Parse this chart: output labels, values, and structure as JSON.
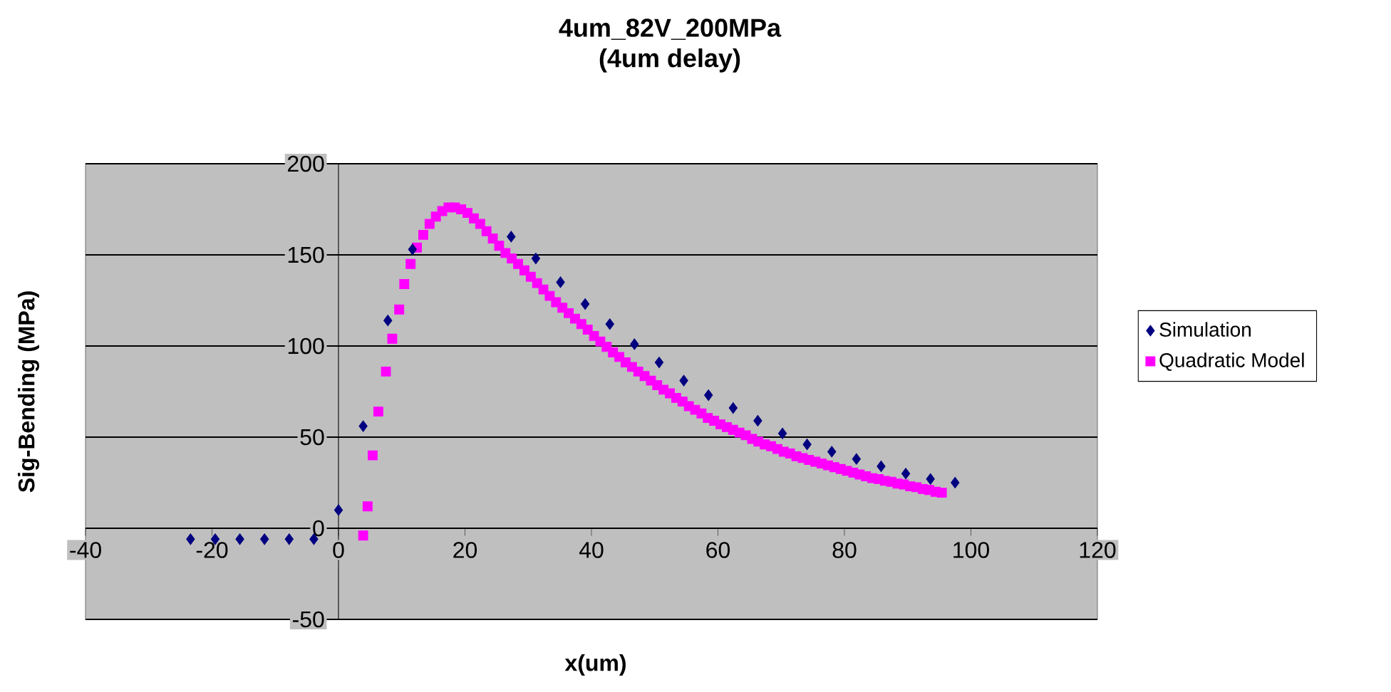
{
  "chart_data": {
    "type": "scatter",
    "title": "4um_82V_200MPa",
    "subtitle": "(4um delay)",
    "xlabel": "x(um)",
    "ylabel": "Sig-Bending (MPa)",
    "xlim": [
      -40,
      120
    ],
    "xticks": [
      -40,
      -20,
      0,
      20,
      40,
      60,
      80,
      100,
      120
    ],
    "ylim": [
      -50,
      200
    ],
    "yticks": [
      -50,
      0,
      50,
      100,
      150,
      200
    ],
    "grid": "y",
    "legend": "right",
    "series": [
      {
        "name": "Simulation",
        "color": "#000080",
        "marker": "diamond",
        "x": [
          -23.4,
          -19.5,
          -15.6,
          -11.7,
          -7.8,
          -3.9,
          0,
          3.9,
          7.8,
          11.7,
          15.6,
          19.5,
          23.4,
          27.3,
          31.2,
          35.1,
          39,
          42.9,
          46.8,
          50.7,
          54.6,
          58.5,
          62.4,
          66.3,
          70.2,
          74.1,
          78,
          81.9,
          85.8,
          89.7,
          93.6,
          97.5
        ],
        "values": [
          -6,
          -6,
          -6,
          -6,
          -6,
          -6,
          10,
          56,
          114,
          153,
          null,
          null,
          null,
          160,
          148,
          135,
          123,
          112,
          101,
          91,
          81,
          73,
          66,
          59,
          52,
          46,
          42,
          38,
          34,
          30,
          27,
          25
        ]
      },
      {
        "name": "Quadratic Model",
        "color": "#ff00ff",
        "marker": "square",
        "x": [
          3.9,
          4.6,
          5.4,
          6.3,
          7.5,
          8.5,
          9.6,
          10.4,
          11.4,
          12.4,
          13.4,
          14.4,
          15.4,
          16.4,
          17.4,
          18.4,
          19.4,
          20.4,
          21.4,
          22.4,
          23.4,
          24.4,
          25.4,
          26.4,
          27.4,
          28.4,
          29.4,
          30.4,
          31.4,
          32.4,
          33.4,
          34.4,
          35.4,
          36.4,
          37.4,
          38.4,
          39.4,
          40.4,
          41.4,
          42.4,
          43.4,
          44.4,
          45.4,
          46.4,
          47.4,
          48.4,
          49.4,
          50.4,
          51.4,
          52.4,
          53.4,
          54.4,
          55.4,
          56.4,
          57.4,
          58.4,
          59.4,
          60.4,
          61.4,
          62.4,
          63.4,
          64.4,
          65.4,
          66.4,
          67.4,
          68.4,
          69.4,
          70.4,
          71.4,
          72.4,
          73.4,
          74.4,
          75.4,
          76.4,
          77.4,
          78.4,
          79.4,
          80.4,
          81.4,
          82.4,
          83.4,
          84.4,
          85.4,
          86.4,
          87.4,
          88.4,
          89.4,
          90.4,
          91.4,
          92.4,
          93.4,
          94.4,
          95.4
        ],
        "values": [
          -4,
          12,
          40,
          64,
          86,
          104,
          120,
          134,
          145,
          154,
          161,
          167,
          171,
          174,
          176,
          176,
          175,
          173,
          170,
          167,
          163,
          159,
          155,
          151,
          148,
          145,
          141.5,
          138,
          134.5,
          131,
          127.5,
          124,
          121,
          118,
          115,
          112,
          109,
          105.5,
          102.5,
          99.5,
          96.5,
          94,
          91,
          88.5,
          86,
          83.5,
          81,
          78.5,
          76,
          74,
          71.5,
          69.5,
          67,
          65,
          63,
          60.5,
          59,
          57,
          55.5,
          54,
          52.5,
          51,
          49,
          47.5,
          46,
          45,
          43.5,
          42,
          41,
          39.5,
          38.5,
          37.5,
          36.5,
          35.5,
          34.5,
          33.5,
          32.5,
          31.5,
          30.5,
          29.5,
          28.5,
          27.5,
          27,
          26,
          25.5,
          24.5,
          24,
          23,
          22.5,
          21.5,
          21,
          20,
          19.5
        ]
      }
    ]
  }
}
